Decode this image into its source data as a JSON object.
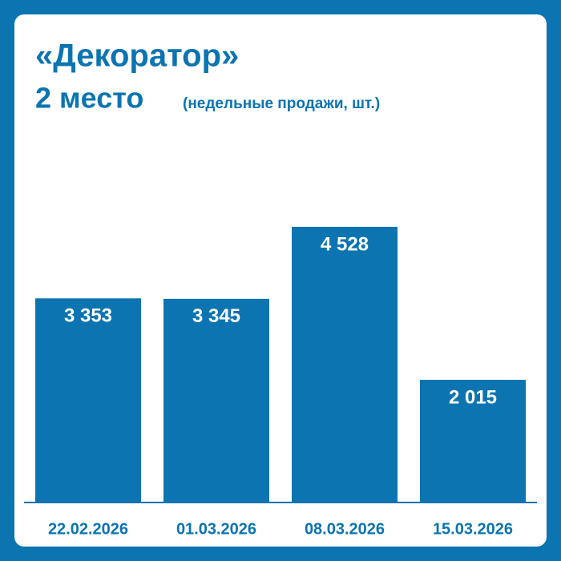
{
  "chart_data": {
    "type": "bar",
    "title": "«Декоратор»",
    "subtitle": "2 место",
    "note": "(недельные продажи, шт.)",
    "categories": [
      "22.02.2026",
      "01.03.2026",
      "08.03.2026",
      "15.03.2026"
    ],
    "values": [
      3353,
      3345,
      4528,
      2015
    ],
    "value_labels": [
      "3 353",
      "3 345",
      "4 528",
      "2 015"
    ],
    "color": "#0b74b1"
  }
}
